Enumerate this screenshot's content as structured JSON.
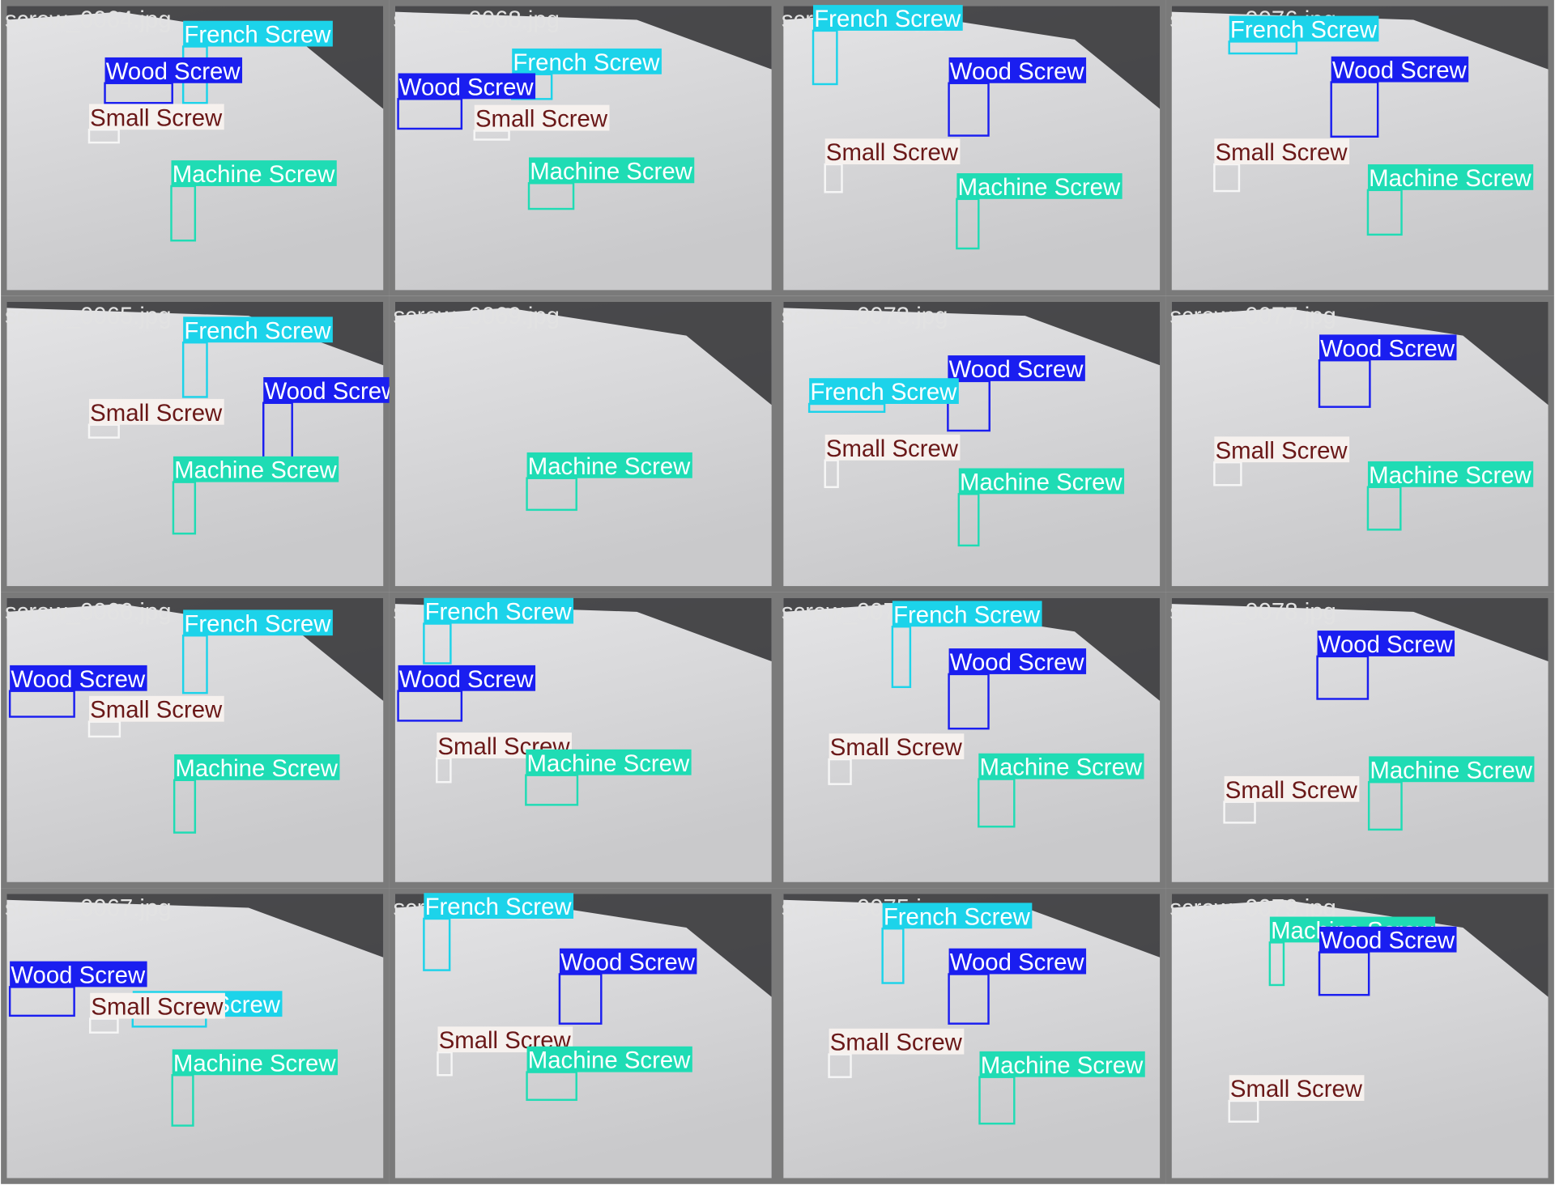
{
  "tiles": [
    {
      "filename": "screw_0064.jpg",
      "detections": [
        "French Screw",
        "Wood Screw",
        "Small Screw",
        "Machine Screw"
      ]
    },
    {
      "filename": "screw_0068.jpg",
      "detections": [
        "French Screw",
        "Wood Screw",
        "Small Screw",
        "Machine Screw"
      ]
    },
    {
      "filename": "screw_0072.jpg",
      "detections": [
        "French Screw",
        "Wood Screw",
        "Small Screw",
        "Machine Screw"
      ]
    },
    {
      "filename": "screw_0076.jpg",
      "detections": [
        "French Screw",
        "Wood Screw",
        "Small Screw",
        "Machine Screw"
      ]
    },
    {
      "filename": "screw_0065.jpg",
      "detections": [
        "French Screw",
        "Small Screw",
        "Wood Screw",
        "Machine Screw"
      ]
    },
    {
      "filename": "screw_0069.jpg",
      "detections": [
        "Machine Screw"
      ]
    },
    {
      "filename": "screw_0073.jpg",
      "detections": [
        "Wood Screw",
        "French Screw",
        "Small Screw",
        "Machine Screw"
      ]
    },
    {
      "filename": "screw_0077.jpg",
      "detections": [
        "Wood Screw",
        "Small Screw",
        "Machine Screw"
      ]
    },
    {
      "filename": "screw_0066.jpg",
      "detections": [
        "French Screw",
        "Wood Screw",
        "Small Screw",
        "Machine Screw"
      ]
    },
    {
      "filename": "screw_0070.jpg",
      "detections": [
        "French Screw",
        "Wood Screw",
        "Small Screw",
        "Machine Screw"
      ]
    },
    {
      "filename": "screw_0074.jpg",
      "detections": [
        "French Screw",
        "Wood Screw",
        "Small Screw",
        "Machine Screw"
      ]
    },
    {
      "filename": "screw_0078.jpg",
      "detections": [
        "Wood Screw",
        "Machine Screw",
        "Small Screw"
      ]
    },
    {
      "filename": "screw_0067.jpg",
      "detections": [
        "French Screw",
        "Wood Screw",
        "Small Screw",
        "Machine Screw"
      ]
    },
    {
      "filename": "screw_0071.jpg",
      "detections": [
        "French Screw",
        "Wood Screw",
        "Small Screw",
        "Machine Screw"
      ]
    },
    {
      "filename": "screw_0075.jpg",
      "detections": [
        "French Screw",
        "Wood Screw",
        "Small Screw",
        "Machine Screw"
      ]
    },
    {
      "filename": "screw_0079.jpg",
      "detections": [
        "Machine Screw",
        "Wood Screw",
        "Small Screw"
      ]
    }
  ]
}
